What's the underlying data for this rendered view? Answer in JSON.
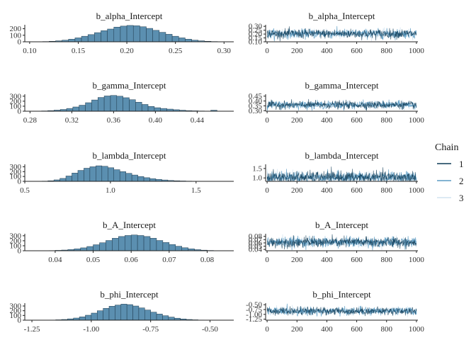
{
  "chart_data": [
    {
      "type": "histogram",
      "title": "b_alpha_Intercept",
      "bins": [
        0.1,
        0.3
      ],
      "xticks": [
        0.1,
        0.15,
        0.2,
        0.25,
        0.3
      ],
      "xlim": [
        0.095,
        0.31
      ],
      "yticks": [
        0,
        100,
        200
      ],
      "ylim": [
        0,
        260
      ],
      "counts": [
        1,
        2,
        4,
        8,
        15,
        25,
        40,
        60,
        85,
        110,
        140,
        170,
        195,
        225,
        240,
        250,
        245,
        230,
        205,
        175,
        145,
        115,
        85,
        60,
        40,
        25,
        15,
        8,
        4,
        2
      ]
    },
    {
      "type": "trace",
      "title": "b_alpha_Intercept",
      "xticks": [
        0,
        200,
        400,
        600,
        800,
        1000
      ],
      "xlim": [
        -10,
        1010
      ],
      "yticks": [
        0.1,
        0.15,
        0.2,
        0.25,
        0.3
      ],
      "ytick_labels": [
        "0.10",
        "0.15",
        "0.20",
        "0.25",
        "0.30"
      ],
      "ylim": [
        0.1,
        0.32
      ],
      "mean": 0.205,
      "sd": 0.03
    },
    {
      "type": "histogram",
      "title": "b_gamma_Intercept",
      "bins": [
        0.285,
        0.465
      ],
      "xticks": [
        0.28,
        0.32,
        0.36,
        0.4,
        0.44
      ],
      "xtick_labels": [
        "0.28",
        "0.32",
        "0.36",
        "0.40",
        "0.44"
      ],
      "xlim": [
        0.275,
        0.475
      ],
      "yticks": [
        0,
        100,
        200,
        300
      ],
      "ylim": [
        0,
        340
      ],
      "counts": [
        3,
        6,
        12,
        22,
        35,
        55,
        85,
        120,
        170,
        225,
        275,
        305,
        315,
        300,
        270,
        230,
        180,
        135,
        95,
        70,
        55,
        42,
        30,
        20,
        12,
        8,
        5,
        3,
        20,
        2
      ]
    },
    {
      "type": "trace",
      "title": "b_gamma_Intercept",
      "xticks": [
        0,
        200,
        400,
        600,
        800,
        1000
      ],
      "xlim": [
        -10,
        1010
      ],
      "yticks": [
        0.3,
        0.35,
        0.4,
        0.45
      ],
      "ytick_labels": [
        "0.30",
        "0.35",
        "0.40",
        "0.45"
      ],
      "ylim": [
        0.295,
        0.47
      ],
      "mean": 0.36,
      "sd": 0.02
    },
    {
      "type": "histogram",
      "title": "b_lambda_Intercept",
      "bins": [
        0.6,
        1.65
      ],
      "xticks": [
        0.5,
        1.0,
        1.5
      ],
      "xtick_labels": [
        "0.5",
        "1.0",
        "1.5"
      ],
      "xlim": [
        0.5,
        1.72
      ],
      "yticks": [
        0,
        100,
        200,
        300
      ],
      "ylim": [
        0,
        350
      ],
      "counts": [
        5,
        12,
        30,
        60,
        110,
        170,
        225,
        270,
        300,
        320,
        310,
        280,
        240,
        200,
        165,
        130,
        100,
        75,
        55,
        40,
        28,
        18,
        12,
        8,
        5,
        3,
        2,
        1,
        1,
        0
      ]
    },
    {
      "type": "trace",
      "title": "b_lambda_Intercept",
      "xticks": [
        0,
        200,
        400,
        600,
        800,
        1000
      ],
      "xlim": [
        -10,
        1010
      ],
      "yticks": [
        1.0,
        1.5
      ],
      "ytick_labels": [
        "1.0",
        "1.5"
      ],
      "ylim": [
        0.82,
        1.72
      ],
      "mean": 1.03,
      "sd": 0.16
    },
    {
      "type": "histogram",
      "title": "b_A_Intercept",
      "bins": [
        0.035,
        0.085
      ],
      "xticks": [
        0.04,
        0.05,
        0.06,
        0.07,
        0.08
      ],
      "xtick_labels": [
        "0.04",
        "0.05",
        "0.06",
        "0.07",
        "0.08"
      ],
      "xlim": [
        0.032,
        0.087
      ],
      "yticks": [
        0,
        100,
        200,
        300
      ],
      "ylim": [
        0,
        340
      ],
      "counts": [
        1,
        2,
        4,
        8,
        14,
        24,
        38,
        58,
        85,
        120,
        160,
        205,
        250,
        285,
        305,
        315,
        305,
        285,
        250,
        205,
        165,
        125,
        90,
        60,
        38,
        22,
        12,
        6,
        3,
        1
      ]
    },
    {
      "type": "trace",
      "title": "b_A_Intercept",
      "xticks": [
        0,
        200,
        400,
        600,
        800,
        1000
      ],
      "xlim": [
        -10,
        1010
      ],
      "yticks": [
        0.04,
        0.05,
        0.06,
        0.07,
        0.08
      ],
      "ytick_labels": [
        "0.04",
        "0.05",
        "0.06",
        "0.07",
        "0.08"
      ],
      "ylim": [
        0.036,
        0.088
      ],
      "mean": 0.062,
      "sd": 0.008
    },
    {
      "type": "histogram",
      "title": "b_phi_Intercept",
      "bins": [
        -1.2,
        -0.45
      ],
      "xticks": [
        -1.25,
        -1.0,
        -0.75,
        -0.5
      ],
      "xtick_labels": [
        "-1.25",
        "-1.00",
        "-0.75",
        "-0.50"
      ],
      "xlim": [
        -1.28,
        -0.4
      ],
      "yticks": [
        0,
        100,
        200,
        300
      ],
      "ylim": [
        0,
        360
      ],
      "counts": [
        2,
        4,
        8,
        15,
        28,
        45,
        70,
        105,
        150,
        200,
        250,
        295,
        320,
        340,
        330,
        300,
        260,
        215,
        170,
        130,
        95,
        65,
        42,
        26,
        15,
        8,
        4,
        2,
        1,
        0
      ]
    },
    {
      "type": "trace",
      "title": "b_phi_Intercept",
      "xticks": [
        0,
        200,
        400,
        600,
        800,
        1000
      ],
      "xlim": [
        -10,
        1010
      ],
      "yticks": [
        -1.25,
        -1.0,
        -0.75,
        -0.5
      ],
      "ytick_labels": [
        "-1.25",
        "-1.00",
        "-0.75",
        "-0.50"
      ],
      "ylim": [
        -1.3,
        -0.42
      ],
      "mean": -0.83,
      "sd": 0.1
    }
  ],
  "legend": {
    "title": "Chain",
    "items": [
      {
        "label": "1",
        "color": "#0d3a55"
      },
      {
        "label": "2",
        "color": "#5a9bc3"
      },
      {
        "label": "3",
        "color": "#d2e4f1"
      }
    ]
  },
  "colors": {
    "hist_fill": "#5b8fb0",
    "hist_stroke": "#1f3a4d",
    "axis": "#222222"
  }
}
